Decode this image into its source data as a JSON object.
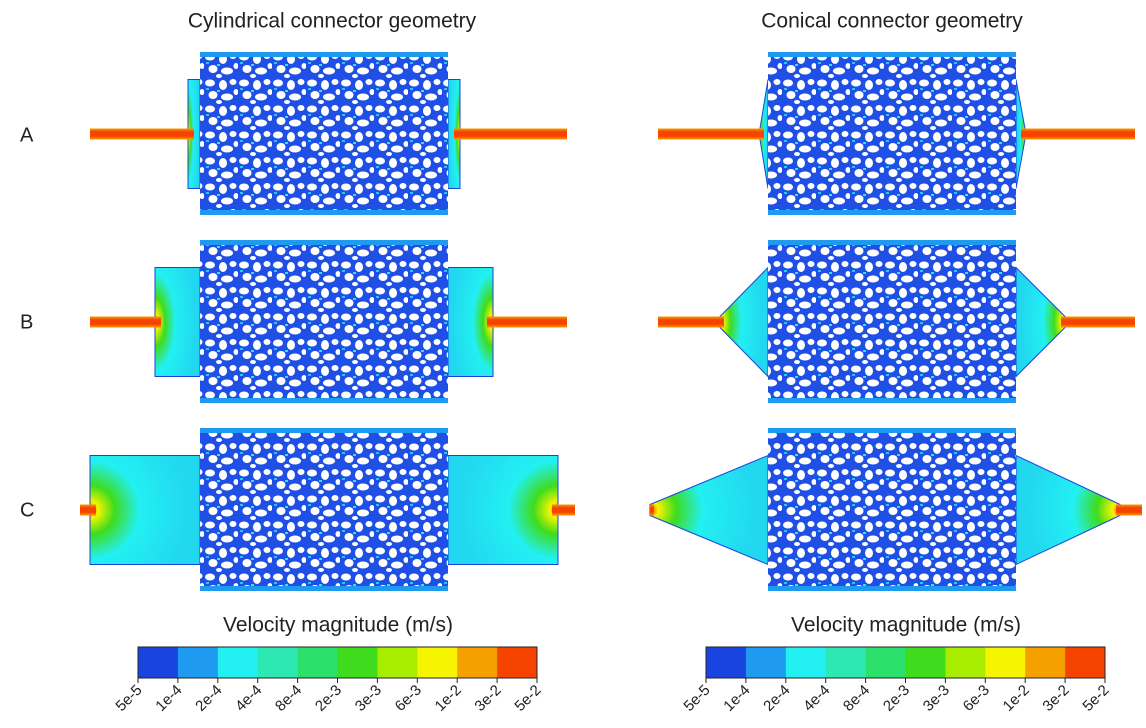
{
  "columns": [
    {
      "title": "Cylindrical connector geometry"
    },
    {
      "title": "Conical connector geometry"
    }
  ],
  "rows": [
    {
      "label": "A"
    },
    {
      "label": "B"
    },
    {
      "label": "C"
    }
  ],
  "colorbars": [
    {
      "title": "Velocity magnitude (m/s)",
      "labels": [
        "5e-5",
        "1e-4",
        "2e-4",
        "4e-4",
        "8e-4",
        "2e-3",
        "3e-3",
        "6e-3",
        "1e-2",
        "3e-2",
        "5e-2"
      ],
      "colors": [
        "#1a44e0",
        "#1e9af0",
        "#22f0f2",
        "#2ee8b4",
        "#2ce06c",
        "#3fdc1e",
        "#a8ec00",
        "#f6f400",
        "#f6a000",
        "#f64400"
      ]
    },
    {
      "title": "Velocity magnitude (m/s)",
      "labels": [
        "5e-5",
        "1e-4",
        "2e-4",
        "4e-4",
        "8e-4",
        "2e-3",
        "3e-3",
        "6e-3",
        "1e-2",
        "3e-2",
        "5e-2"
      ],
      "colors": [
        "#1a44e0",
        "#1e9af0",
        "#22f0f2",
        "#2ee8b4",
        "#2ce06c",
        "#3fdc1e",
        "#a8ec00",
        "#f6f400",
        "#f6a000",
        "#f64400"
      ]
    }
  ]
}
